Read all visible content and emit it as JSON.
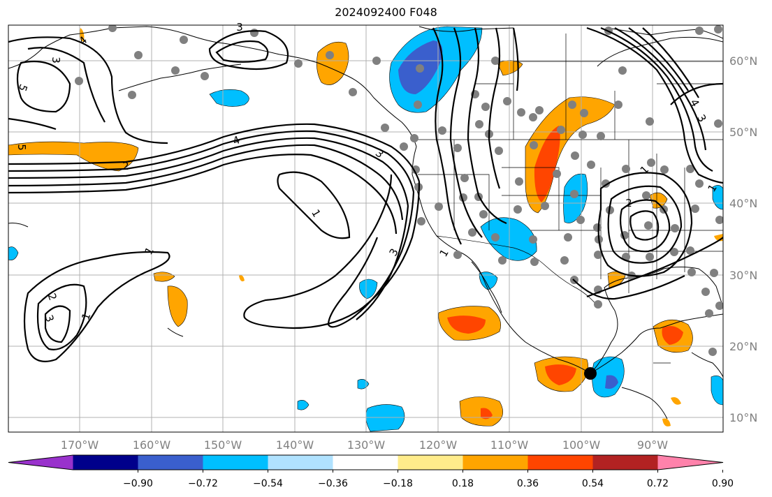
{
  "title": "2024092400 F048",
  "map": {
    "longitude_labels": [
      "170°W",
      "160°W",
      "150°W",
      "140°W",
      "130°W",
      "120°W",
      "110°W",
      "100°W",
      "90°W"
    ],
    "latitude_labels": [
      "60°N",
      "50°N",
      "40°N",
      "30°N",
      "20°N",
      "10°N"
    ],
    "contour_labels": [
      "4",
      "3",
      "3",
      "5",
      "5",
      "4",
      "2",
      "3",
      "4",
      "1",
      "3",
      "1",
      "1",
      "2",
      "3",
      "1",
      "1",
      "2",
      "3",
      "1"
    ]
  },
  "colorbar": {
    "ticks": [
      "−0.90",
      "−0.72",
      "−0.54",
      "−0.36",
      "−0.18",
      "0.18",
      "0.36",
      "0.54",
      "0.72",
      "0.90"
    ],
    "colors": [
      "#9932CC",
      "#00008B",
      "#3A5FCD",
      "#00BFFF",
      "#B0E2FF",
      "#FFFFFF",
      "#FFEC8B",
      "#FFA500",
      "#FF4500",
      "#B22222",
      "#FF82AB"
    ]
  }
}
